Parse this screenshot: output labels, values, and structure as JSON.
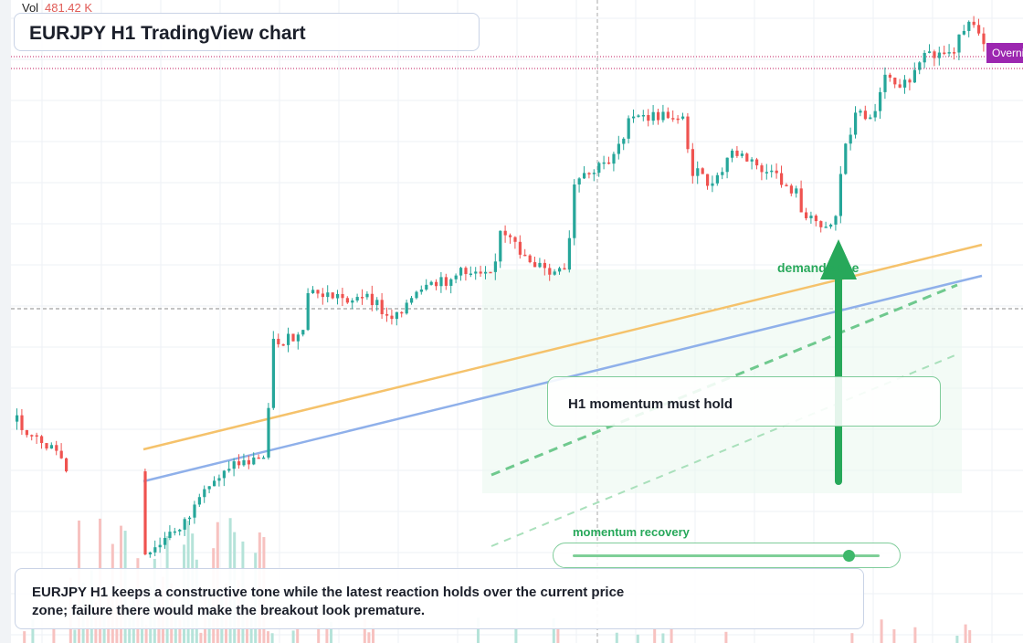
{
  "header": {
    "vol_label": "Vol",
    "vol_value": "481.42 K",
    "title": "EURJPY H1 TradingView chart"
  },
  "price_tag": {
    "label": "Overnight",
    "color": "#9c27b0"
  },
  "annotations": {
    "callout": "H1 momentum must hold",
    "demand_label": "demand zone",
    "momentum_label": "momentum recovery",
    "momentum_level": 0.9
  },
  "summary": "EURJPY H1 keeps a constructive tone while the latest reaction holds over the current price zone; failure there would make the breakout look premature.",
  "colors": {
    "bull": "#26a69a",
    "bear": "#ef5350",
    "accent_green": "#27a85a",
    "orange_line": "#f5c26b",
    "blue_line": "#8fb0ea",
    "tag_purple": "#9c27b0"
  },
  "chart_data": {
    "type": "candlestick",
    "description_series": "EURJPY H1",
    "candles": [
      {
        "o": 0.4,
        "c": 0.38
      },
      {
        "o": 0.38,
        "c": 0.31
      },
      {
        "o": 0.31,
        "c": 0.26
      },
      {
        "o": 0.26,
        "c": 0.3
      },
      {
        "o": 0.3,
        "c": 0.37
      },
      {
        "o": 0.37,
        "c": 0.39
      },
      {
        "o": 0.39,
        "c": 0.34
      },
      {
        "o": 0.34,
        "c": 0.3
      },
      {
        "o": 0.3,
        "c": 0.27
      },
      {
        "o": 0.27,
        "c": 0.22
      }
    ],
    "volume_label": "Vol"
  }
}
